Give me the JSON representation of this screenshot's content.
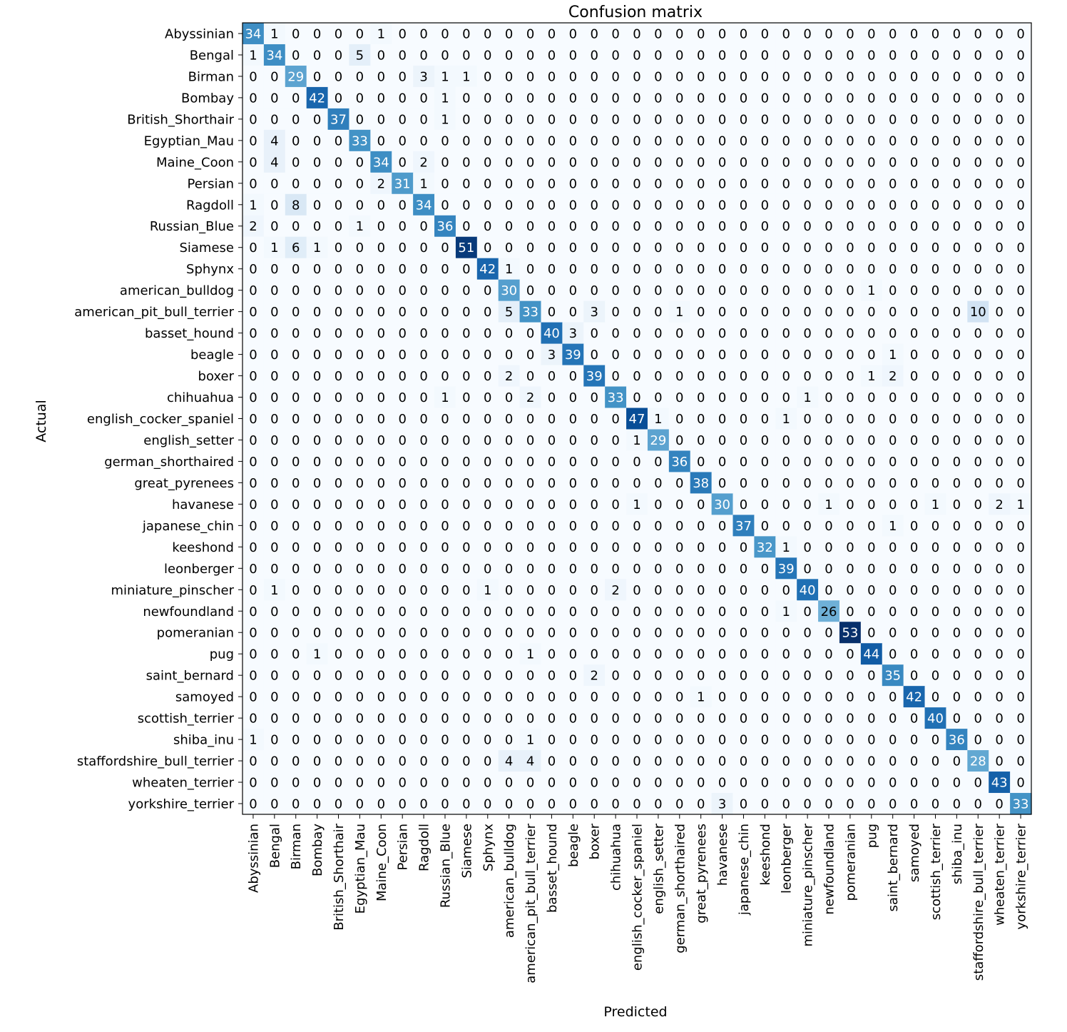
{
  "chart_data": {
    "type": "heatmap",
    "title": "Confusion matrix",
    "xlabel": "Predicted",
    "ylabel": "Actual",
    "colormap": "Blues",
    "colors": {
      "low": "#f7fbff",
      "high": "#08306b",
      "text_dark": "#000000",
      "text_light": "#ffffff"
    },
    "labels": [
      "Abyssinian",
      "Bengal",
      "Birman",
      "Bombay",
      "British_Shorthair",
      "Egyptian_Mau",
      "Maine_Coon",
      "Persian",
      "Ragdoll",
      "Russian_Blue",
      "Siamese",
      "Sphynx",
      "american_bulldog",
      "american_pit_bull_terrier",
      "basset_hound",
      "beagle",
      "boxer",
      "chihuahua",
      "english_cocker_spaniel",
      "english_setter",
      "german_shorthaired",
      "great_pyrenees",
      "havanese",
      "japanese_chin",
      "keeshond",
      "leonberger",
      "miniature_pinscher",
      "newfoundland",
      "pomeranian",
      "pug",
      "saint_bernard",
      "samoyed",
      "scottish_terrier",
      "shiba_inu",
      "staffordshire_bull_terrier",
      "wheaten_terrier",
      "yorkshire_terrier"
    ],
    "matrix": [
      [
        34,
        1,
        0,
        0,
        0,
        0,
        1,
        0,
        0,
        0,
        0,
        0,
        0,
        0,
        0,
        0,
        0,
        0,
        0,
        0,
        0,
        0,
        0,
        0,
        0,
        0,
        0,
        0,
        0,
        0,
        0,
        0,
        0,
        0,
        0,
        0,
        0
      ],
      [
        1,
        34,
        0,
        0,
        0,
        5,
        0,
        0,
        0,
        0,
        0,
        0,
        0,
        0,
        0,
        0,
        0,
        0,
        0,
        0,
        0,
        0,
        0,
        0,
        0,
        0,
        0,
        0,
        0,
        0,
        0,
        0,
        0,
        0,
        0,
        0,
        0
      ],
      [
        0,
        0,
        29,
        0,
        0,
        0,
        0,
        0,
        3,
        1,
        1,
        0,
        0,
        0,
        0,
        0,
        0,
        0,
        0,
        0,
        0,
        0,
        0,
        0,
        0,
        0,
        0,
        0,
        0,
        0,
        0,
        0,
        0,
        0,
        0,
        0,
        0
      ],
      [
        0,
        0,
        0,
        42,
        0,
        0,
        0,
        0,
        0,
        1,
        0,
        0,
        0,
        0,
        0,
        0,
        0,
        0,
        0,
        0,
        0,
        0,
        0,
        0,
        0,
        0,
        0,
        0,
        0,
        0,
        0,
        0,
        0,
        0,
        0,
        0,
        0
      ],
      [
        0,
        0,
        0,
        0,
        37,
        0,
        0,
        0,
        0,
        1,
        0,
        0,
        0,
        0,
        0,
        0,
        0,
        0,
        0,
        0,
        0,
        0,
        0,
        0,
        0,
        0,
        0,
        0,
        0,
        0,
        0,
        0,
        0,
        0,
        0,
        0,
        0
      ],
      [
        0,
        4,
        0,
        0,
        0,
        33,
        0,
        0,
        0,
        0,
        0,
        0,
        0,
        0,
        0,
        0,
        0,
        0,
        0,
        0,
        0,
        0,
        0,
        0,
        0,
        0,
        0,
        0,
        0,
        0,
        0,
        0,
        0,
        0,
        0,
        0,
        0
      ],
      [
        0,
        4,
        0,
        0,
        0,
        0,
        34,
        0,
        2,
        0,
        0,
        0,
        0,
        0,
        0,
        0,
        0,
        0,
        0,
        0,
        0,
        0,
        0,
        0,
        0,
        0,
        0,
        0,
        0,
        0,
        0,
        0,
        0,
        0,
        0,
        0,
        0
      ],
      [
        0,
        0,
        0,
        0,
        0,
        0,
        2,
        31,
        1,
        0,
        0,
        0,
        0,
        0,
        0,
        0,
        0,
        0,
        0,
        0,
        0,
        0,
        0,
        0,
        0,
        0,
        0,
        0,
        0,
        0,
        0,
        0,
        0,
        0,
        0,
        0,
        0
      ],
      [
        1,
        0,
        8,
        0,
        0,
        0,
        0,
        0,
        34,
        0,
        0,
        0,
        0,
        0,
        0,
        0,
        0,
        0,
        0,
        0,
        0,
        0,
        0,
        0,
        0,
        0,
        0,
        0,
        0,
        0,
        0,
        0,
        0,
        0,
        0,
        0,
        0
      ],
      [
        2,
        0,
        0,
        0,
        0,
        1,
        0,
        0,
        0,
        36,
        0,
        0,
        0,
        0,
        0,
        0,
        0,
        0,
        0,
        0,
        0,
        0,
        0,
        0,
        0,
        0,
        0,
        0,
        0,
        0,
        0,
        0,
        0,
        0,
        0,
        0,
        0
      ],
      [
        0,
        1,
        6,
        1,
        0,
        0,
        0,
        0,
        0,
        0,
        51,
        0,
        0,
        0,
        0,
        0,
        0,
        0,
        0,
        0,
        0,
        0,
        0,
        0,
        0,
        0,
        0,
        0,
        0,
        0,
        0,
        0,
        0,
        0,
        0,
        0,
        0
      ],
      [
        0,
        0,
        0,
        0,
        0,
        0,
        0,
        0,
        0,
        0,
        0,
        42,
        1,
        0,
        0,
        0,
        0,
        0,
        0,
        0,
        0,
        0,
        0,
        0,
        0,
        0,
        0,
        0,
        0,
        0,
        0,
        0,
        0,
        0,
        0,
        0,
        0
      ],
      [
        0,
        0,
        0,
        0,
        0,
        0,
        0,
        0,
        0,
        0,
        0,
        0,
        30,
        0,
        0,
        0,
        0,
        0,
        0,
        0,
        0,
        0,
        0,
        0,
        0,
        0,
        0,
        0,
        0,
        1,
        0,
        0,
        0,
        0,
        0,
        0,
        0
      ],
      [
        0,
        0,
        0,
        0,
        0,
        0,
        0,
        0,
        0,
        0,
        0,
        0,
        5,
        33,
        0,
        0,
        3,
        0,
        0,
        0,
        1,
        0,
        0,
        0,
        0,
        0,
        0,
        0,
        0,
        0,
        0,
        0,
        0,
        0,
        10,
        0,
        0
      ],
      [
        0,
        0,
        0,
        0,
        0,
        0,
        0,
        0,
        0,
        0,
        0,
        0,
        0,
        0,
        40,
        3,
        0,
        0,
        0,
        0,
        0,
        0,
        0,
        0,
        0,
        0,
        0,
        0,
        0,
        0,
        0,
        0,
        0,
        0,
        0,
        0,
        0
      ],
      [
        0,
        0,
        0,
        0,
        0,
        0,
        0,
        0,
        0,
        0,
        0,
        0,
        0,
        0,
        3,
        39,
        0,
        0,
        0,
        0,
        0,
        0,
        0,
        0,
        0,
        0,
        0,
        0,
        0,
        0,
        1,
        0,
        0,
        0,
        0,
        0,
        0
      ],
      [
        0,
        0,
        0,
        0,
        0,
        0,
        0,
        0,
        0,
        0,
        0,
        0,
        2,
        0,
        0,
        0,
        39,
        0,
        0,
        0,
        0,
        0,
        0,
        0,
        0,
        0,
        0,
        0,
        0,
        1,
        2,
        0,
        0,
        0,
        0,
        0,
        0
      ],
      [
        0,
        0,
        0,
        0,
        0,
        0,
        0,
        0,
        0,
        1,
        0,
        0,
        0,
        2,
        0,
        0,
        0,
        33,
        0,
        0,
        0,
        0,
        0,
        0,
        0,
        0,
        1,
        0,
        0,
        0,
        0,
        0,
        0,
        0,
        0,
        0,
        0
      ],
      [
        0,
        0,
        0,
        0,
        0,
        0,
        0,
        0,
        0,
        0,
        0,
        0,
        0,
        0,
        0,
        0,
        0,
        0,
        47,
        1,
        0,
        0,
        0,
        0,
        0,
        1,
        0,
        0,
        0,
        0,
        0,
        0,
        0,
        0,
        0,
        0,
        0
      ],
      [
        0,
        0,
        0,
        0,
        0,
        0,
        0,
        0,
        0,
        0,
        0,
        0,
        0,
        0,
        0,
        0,
        0,
        0,
        1,
        29,
        0,
        0,
        0,
        0,
        0,
        0,
        0,
        0,
        0,
        0,
        0,
        0,
        0,
        0,
        0,
        0,
        0
      ],
      [
        0,
        0,
        0,
        0,
        0,
        0,
        0,
        0,
        0,
        0,
        0,
        0,
        0,
        0,
        0,
        0,
        0,
        0,
        0,
        0,
        36,
        0,
        0,
        0,
        0,
        0,
        0,
        0,
        0,
        0,
        0,
        0,
        0,
        0,
        0,
        0,
        0
      ],
      [
        0,
        0,
        0,
        0,
        0,
        0,
        0,
        0,
        0,
        0,
        0,
        0,
        0,
        0,
        0,
        0,
        0,
        0,
        0,
        0,
        0,
        38,
        0,
        0,
        0,
        0,
        0,
        0,
        0,
        0,
        0,
        0,
        0,
        0,
        0,
        0,
        0
      ],
      [
        0,
        0,
        0,
        0,
        0,
        0,
        0,
        0,
        0,
        0,
        0,
        0,
        0,
        0,
        0,
        0,
        0,
        0,
        1,
        0,
        0,
        0,
        30,
        0,
        0,
        0,
        0,
        1,
        0,
        0,
        0,
        0,
        1,
        0,
        0,
        2,
        1
      ],
      [
        0,
        0,
        0,
        0,
        0,
        0,
        0,
        0,
        0,
        0,
        0,
        0,
        0,
        0,
        0,
        0,
        0,
        0,
        0,
        0,
        0,
        0,
        0,
        37,
        0,
        0,
        0,
        0,
        0,
        0,
        1,
        0,
        0,
        0,
        0,
        0,
        0
      ],
      [
        0,
        0,
        0,
        0,
        0,
        0,
        0,
        0,
        0,
        0,
        0,
        0,
        0,
        0,
        0,
        0,
        0,
        0,
        0,
        0,
        0,
        0,
        0,
        0,
        32,
        1,
        0,
        0,
        0,
        0,
        0,
        0,
        0,
        0,
        0,
        0,
        0
      ],
      [
        0,
        0,
        0,
        0,
        0,
        0,
        0,
        0,
        0,
        0,
        0,
        0,
        0,
        0,
        0,
        0,
        0,
        0,
        0,
        0,
        0,
        0,
        0,
        0,
        0,
        39,
        0,
        0,
        0,
        0,
        0,
        0,
        0,
        0,
        0,
        0,
        0
      ],
      [
        0,
        1,
        0,
        0,
        0,
        0,
        0,
        0,
        0,
        0,
        0,
        1,
        0,
        0,
        0,
        0,
        0,
        2,
        0,
        0,
        0,
        0,
        0,
        0,
        0,
        0,
        40,
        0,
        0,
        0,
        0,
        0,
        0,
        0,
        0,
        0,
        0
      ],
      [
        0,
        0,
        0,
        0,
        0,
        0,
        0,
        0,
        0,
        0,
        0,
        0,
        0,
        0,
        0,
        0,
        0,
        0,
        0,
        0,
        0,
        0,
        0,
        0,
        0,
        1,
        0,
        26,
        0,
        0,
        0,
        0,
        0,
        0,
        0,
        0,
        0
      ],
      [
        0,
        0,
        0,
        0,
        0,
        0,
        0,
        0,
        0,
        0,
        0,
        0,
        0,
        0,
        0,
        0,
        0,
        0,
        0,
        0,
        0,
        0,
        0,
        0,
        0,
        0,
        0,
        0,
        53,
        0,
        0,
        0,
        0,
        0,
        0,
        0,
        0
      ],
      [
        0,
        0,
        0,
        1,
        0,
        0,
        0,
        0,
        0,
        0,
        0,
        0,
        0,
        1,
        0,
        0,
        0,
        0,
        0,
        0,
        0,
        0,
        0,
        0,
        0,
        0,
        0,
        0,
        0,
        44,
        0,
        0,
        0,
        0,
        0,
        0,
        0
      ],
      [
        0,
        0,
        0,
        0,
        0,
        0,
        0,
        0,
        0,
        0,
        0,
        0,
        0,
        0,
        0,
        0,
        2,
        0,
        0,
        0,
        0,
        0,
        0,
        0,
        0,
        0,
        0,
        0,
        0,
        0,
        35,
        0,
        0,
        0,
        0,
        0,
        0
      ],
      [
        0,
        0,
        0,
        0,
        0,
        0,
        0,
        0,
        0,
        0,
        0,
        0,
        0,
        0,
        0,
        0,
        0,
        0,
        0,
        0,
        0,
        1,
        0,
        0,
        0,
        0,
        0,
        0,
        0,
        0,
        0,
        42,
        0,
        0,
        0,
        0,
        0
      ],
      [
        0,
        0,
        0,
        0,
        0,
        0,
        0,
        0,
        0,
        0,
        0,
        0,
        0,
        0,
        0,
        0,
        0,
        0,
        0,
        0,
        0,
        0,
        0,
        0,
        0,
        0,
        0,
        0,
        0,
        0,
        0,
        0,
        40,
        0,
        0,
        0,
        0
      ],
      [
        1,
        0,
        0,
        0,
        0,
        0,
        0,
        0,
        0,
        0,
        0,
        0,
        0,
        1,
        0,
        0,
        0,
        0,
        0,
        0,
        0,
        0,
        0,
        0,
        0,
        0,
        0,
        0,
        0,
        0,
        0,
        0,
        0,
        36,
        0,
        0,
        0
      ],
      [
        0,
        0,
        0,
        0,
        0,
        0,
        0,
        0,
        0,
        0,
        0,
        0,
        4,
        4,
        0,
        0,
        0,
        0,
        0,
        0,
        0,
        0,
        0,
        0,
        0,
        0,
        0,
        0,
        0,
        0,
        0,
        0,
        0,
        0,
        28,
        0,
        0
      ],
      [
        0,
        0,
        0,
        0,
        0,
        0,
        0,
        0,
        0,
        0,
        0,
        0,
        0,
        0,
        0,
        0,
        0,
        0,
        0,
        0,
        0,
        0,
        0,
        0,
        0,
        0,
        0,
        0,
        0,
        0,
        0,
        0,
        0,
        0,
        0,
        43,
        0
      ],
      [
        0,
        0,
        0,
        0,
        0,
        0,
        0,
        0,
        0,
        0,
        0,
        0,
        0,
        0,
        0,
        0,
        0,
        0,
        0,
        0,
        0,
        0,
        3,
        0,
        0,
        0,
        0,
        0,
        0,
        0,
        0,
        0,
        0,
        0,
        0,
        0,
        33
      ]
    ]
  }
}
